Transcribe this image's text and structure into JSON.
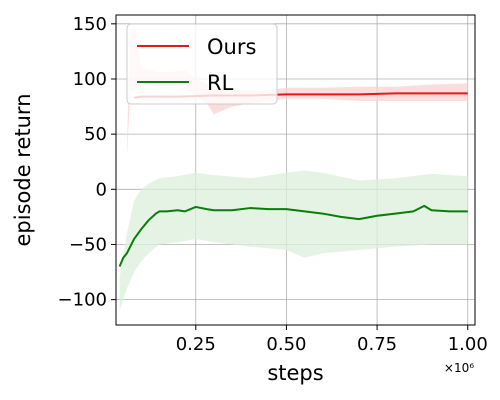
{
  "chart_data": {
    "type": "line",
    "xlabel": "steps",
    "ylabel": "episode return",
    "x_multiplier_label": "×10⁶",
    "xlim": [
      0.03,
      1.02
    ],
    "ylim": [
      -123,
      158
    ],
    "x_ticks": [
      0.25,
      0.5,
      0.75,
      1.0
    ],
    "x_tick_labels": [
      "0.25",
      "0.50",
      "0.75",
      "1.00"
    ],
    "y_ticks": [
      -100,
      -50,
      0,
      50,
      100,
      150
    ],
    "y_tick_labels": [
      "−100",
      "−50",
      "0",
      "50",
      "100",
      "150"
    ],
    "grid": true,
    "legend_position": "upper-left",
    "series": [
      {
        "name": "Ours",
        "color": "#e31a1c",
        "band_color": "#f9d2d3",
        "x": [
          0.08,
          0.1,
          0.2,
          0.3,
          0.4,
          0.5,
          0.6,
          0.7,
          0.8,
          0.9,
          1.0
        ],
        "y": [
          83,
          84,
          84,
          85,
          85,
          86,
          86,
          86,
          87,
          87,
          87
        ],
        "band_x": [
          0.06,
          0.065,
          0.07,
          0.08,
          0.1,
          0.15,
          0.2,
          0.22,
          0.25,
          0.28,
          0.3,
          0.35,
          0.4,
          0.45,
          0.5,
          0.6,
          0.7,
          0.8,
          0.9,
          1.0
        ],
        "band_upper": [
          35,
          100,
          140,
          150,
          110,
          106,
          107,
          108,
          100,
          95,
          93,
          90,
          90,
          90,
          92,
          92,
          93,
          93,
          95,
          96
        ],
        "band_lower": [
          30,
          60,
          90,
          90,
          95,
          92,
          92,
          90,
          85,
          78,
          68,
          75,
          78,
          80,
          82,
          82,
          80,
          80,
          80,
          80
        ]
      },
      {
        "name": "RL",
        "color": "#0a7d0a",
        "band_color": "#dcefdc",
        "x": [
          0.04,
          0.05,
          0.06,
          0.08,
          0.1,
          0.12,
          0.14,
          0.15,
          0.17,
          0.2,
          0.22,
          0.25,
          0.28,
          0.3,
          0.35,
          0.4,
          0.45,
          0.5,
          0.55,
          0.6,
          0.65,
          0.7,
          0.75,
          0.8,
          0.85,
          0.88,
          0.9,
          0.95,
          1.0
        ],
        "y": [
          -70,
          -62,
          -58,
          -45,
          -36,
          -28,
          -22,
          -20,
          -20,
          -19,
          -20,
          -16,
          -18,
          -19,
          -19,
          -17,
          -18,
          -18,
          -20,
          -22,
          -25,
          -27,
          -24,
          -22,
          -20,
          -15,
          -19,
          -20,
          -20
        ],
        "band_x": [
          0.04,
          0.06,
          0.08,
          0.1,
          0.12,
          0.15,
          0.2,
          0.25,
          0.3,
          0.4,
          0.5,
          0.55,
          0.6,
          0.7,
          0.8,
          0.9,
          1.0
        ],
        "band_upper": [
          -80,
          -40,
          -10,
          0,
          5,
          10,
          12,
          15,
          13,
          10,
          15,
          17,
          15,
          8,
          10,
          14,
          12
        ],
        "band_lower": [
          -110,
          -90,
          -75,
          -65,
          -58,
          -50,
          -48,
          -45,
          -48,
          -52,
          -55,
          -62,
          -58,
          -55,
          -52,
          -50,
          -50
        ]
      }
    ]
  }
}
